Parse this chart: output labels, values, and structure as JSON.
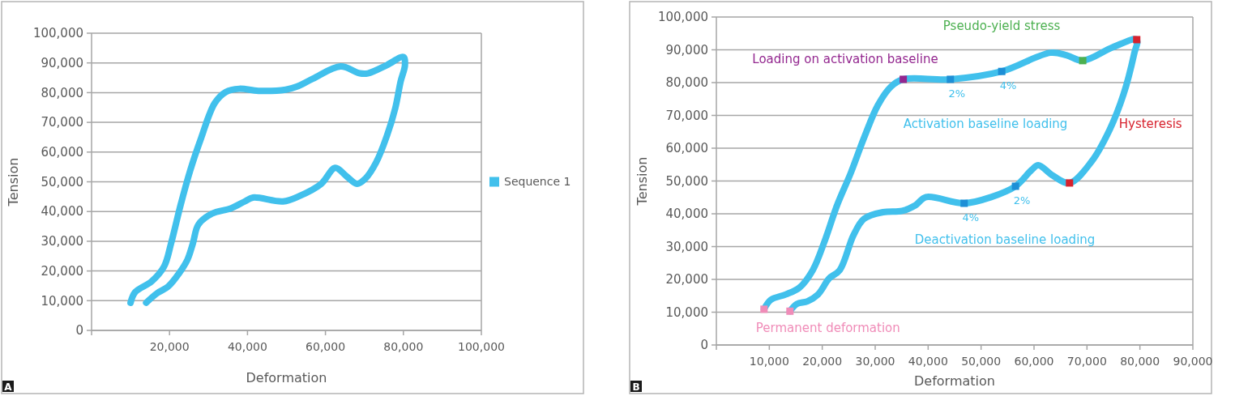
{
  "chart_data": [
    {
      "type": "line",
      "xlabel": "Deformation",
      "ylabel": "Tension",
      "xlim": [
        0,
        100000
      ],
      "ylim": [
        0,
        100000
      ],
      "xticks": [
        {
          "value": 0,
          "label": null
        },
        {
          "value": 20000,
          "label": "20,000"
        },
        {
          "value": 40000,
          "label": "40,000"
        },
        {
          "value": 60000,
          "label": "60,000"
        },
        {
          "value": 80000,
          "label": "80,000"
        },
        {
          "value": 100000,
          "label": "100,000"
        }
      ],
      "yticks": [
        0,
        {
          "value": 10000,
          "label": "10,000"
        },
        {
          "value": 20000,
          "label": "20,000"
        },
        {
          "value": 30000,
          "label": "30,000"
        },
        {
          "value": 40000,
          "label": "40,000"
        },
        {
          "value": 50000,
          "label": "50,000"
        },
        {
          "value": 60000,
          "label": "60,000"
        },
        {
          "value": 70000,
          "label": "70,000"
        },
        {
          "value": 80000,
          "label": "80,000"
        },
        {
          "value": 90000,
          "label": "90,000"
        },
        {
          "value": 100000,
          "label": "100,000"
        }
      ],
      "grid": "y",
      "legend": "right",
      "annotations": [
        "A"
      ],
      "series": [
        {
          "name": "Sequence 1",
          "color": "#41c0ec",
          "x": [
            10000,
            11200,
            15400,
            18600,
            20400,
            22800,
            25300,
            28100,
            31600,
            34400,
            37900,
            42800,
            49800,
            52600,
            56800,
            63900,
            68800,
            70900,
            75800,
            80000,
            80400,
            79300,
            77900,
            75800,
            73000,
            70200,
            68100,
            65300,
            62500,
            58900,
            53300,
            49100,
            41400,
            39300,
            35800,
            30900,
            27400,
            26000,
            24600,
            22500,
            19600,
            16800,
            14000
          ],
          "values": [
            9300,
            12900,
            16500,
            21500,
            29300,
            42000,
            53800,
            64700,
            76500,
            80200,
            81300,
            80600,
            81000,
            82000,
            84700,
            88800,
            86500,
            86500,
            89300,
            92000,
            89300,
            83800,
            74700,
            65600,
            56500,
            51000,
            49300,
            52000,
            54700,
            49300,
            45200,
            43400,
            44700,
            43400,
            41100,
            39300,
            35600,
            29300,
            23800,
            19300,
            14700,
            12500,
            9300
          ]
        }
      ]
    },
    {
      "type": "line",
      "xlabel": "Deformation",
      "ylabel": "Tension",
      "xlim": [
        0,
        90000
      ],
      "ylim": [
        0,
        100000
      ],
      "xticks": [
        {
          "value": 0,
          "label": null
        },
        {
          "value": 10000,
          "label": "10,000"
        },
        {
          "value": 20000,
          "label": "20,000"
        },
        {
          "value": 30000,
          "label": "30,000"
        },
        {
          "value": 40000,
          "label": "40,000"
        },
        {
          "value": 50000,
          "label": "50,000"
        },
        {
          "value": 60000,
          "label": "60,000"
        },
        {
          "value": 70000,
          "label": "70,000"
        },
        {
          "value": 80000,
          "label": "80,000"
        },
        {
          "value": 90000,
          "label": "90,000"
        }
      ],
      "yticks": [
        0,
        {
          "value": 10000,
          "label": "10,000"
        },
        {
          "value": 20000,
          "label": "20,000"
        },
        {
          "value": 30000,
          "label": "30,000"
        },
        {
          "value": 40000,
          "label": "40,000"
        },
        {
          "value": 50000,
          "label": "50,000"
        },
        {
          "value": 60000,
          "label": "60,000"
        },
        {
          "value": 70000,
          "label": "70,000"
        },
        {
          "value": 80000,
          "label": "80,000"
        },
        {
          "value": 90000,
          "label": "90,000"
        },
        {
          "value": 100000,
          "label": "100,000"
        }
      ],
      "grid": "y",
      "legend": false,
      "annotations": [
        "B",
        "Activation baseline loading",
        "Deactivation baseline loading",
        {
          "text": "2%",
          "x": 44200,
          "y": 81000
        },
        {
          "text": "4%",
          "x": 53900,
          "y": 83400
        },
        {
          "text": "4%",
          "x": 46800,
          "y": 43200
        },
        {
          "text": "2%",
          "x": 56500,
          "y": 48400
        }
      ],
      "series": [
        {
          "color": "#41c0ec",
          "x": [
            9000,
            10300,
            13100,
            15700,
            18200,
            20300,
            22800,
            25400,
            27900,
            30500,
            33000,
            35300,
            44200,
            53900,
            63100,
            66200,
            69200,
            74900,
            79400,
            78900,
            76900,
            74300,
            70800,
            66700,
            63600,
            60800,
            59500,
            56500,
            51900,
            46800,
            39600,
            37600,
            35100,
            31500,
            27900,
            25900,
            23300,
            21300,
            19200,
            17200,
            15200,
            13900
          ],
          "values": [
            10900,
            13800,
            15400,
            17500,
            22800,
            31000,
            42600,
            52500,
            63200,
            73100,
            78800,
            81000,
            81000,
            83400,
            89100,
            88300,
            86700,
            90800,
            93100,
            88700,
            76400,
            65700,
            55800,
            49400,
            51600,
            54800,
            53300,
            48400,
            45100,
            43200,
            45100,
            42600,
            40900,
            40500,
            38500,
            33500,
            22800,
            20300,
            15400,
            13300,
            12500,
            10300
          ]
        },
        {
          "type": "scatter",
          "marker": "square",
          "name": "Permanent deformation",
          "color": "#f08cb8",
          "x": [
            9000,
            13900
          ],
          "values": [
            10900,
            10300
          ]
        },
        {
          "type": "scatter",
          "marker": "square",
          "name": "Loading on activation baseline",
          "color": "#93278f",
          "x": [
            35300
          ],
          "values": [
            81000
          ]
        },
        {
          "type": "scatter",
          "marker": "square",
          "name": "Pseudo-yield stress",
          "color": "#4cb050",
          "x": [
            69200
          ],
          "values": [
            86700
          ]
        },
        {
          "type": "scatter",
          "marker": "square",
          "name": "Hysteresis",
          "color": "#d7222e",
          "x": [
            79400,
            66700
          ],
          "values": [
            93100,
            49400
          ]
        },
        {
          "type": "scatter",
          "marker": "square",
          "color": "#1e8fd6",
          "x": [
            44200,
            53900,
            46800,
            56500
          ],
          "values": [
            81000,
            83400,
            43200,
            48400
          ]
        }
      ]
    }
  ]
}
